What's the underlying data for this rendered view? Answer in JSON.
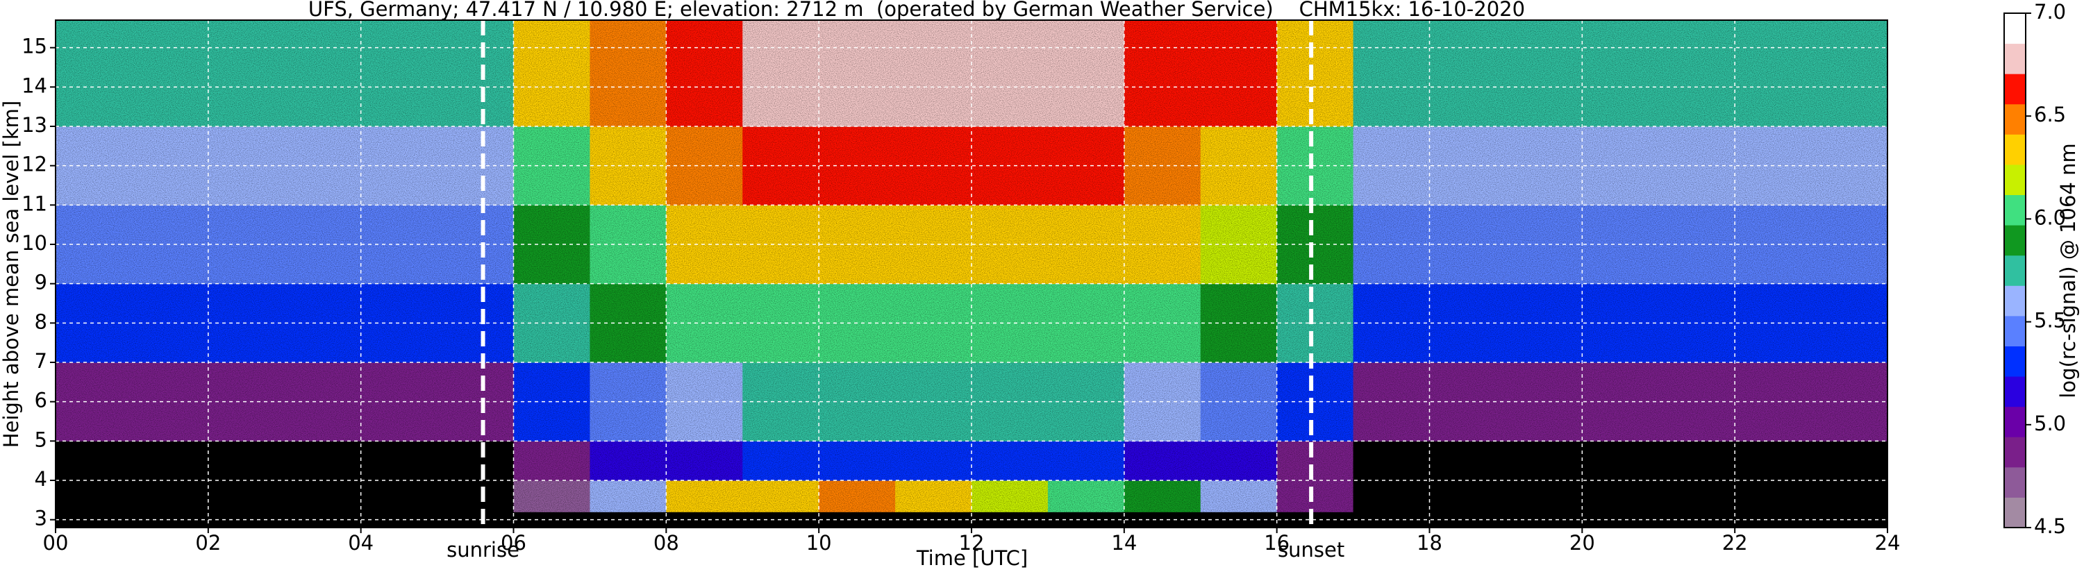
{
  "chart_data": {
    "type": "heatmap",
    "title": "UFS, Germany; 47.417 N / 10.980 E; elevation: 2712 m  (operated by German Weather Service)    CHM15kx: 16-10-2020",
    "x_label": "Time [UTC]",
    "y_label": "Height above mean sea level [km]",
    "colorbar_label": "log(rc-signal) @ 1064 nm",
    "xlim": [
      0,
      24
    ],
    "ylim": [
      2.8,
      15.7
    ],
    "xticks": [
      {
        "value": 0,
        "label": "00"
      },
      {
        "value": 2,
        "label": "02"
      },
      {
        "value": 4,
        "label": "04"
      },
      {
        "value": 6,
        "label": "06"
      },
      {
        "value": 8,
        "label": "08"
      },
      10,
      12,
      14,
      16,
      18,
      20,
      22,
      24
    ],
    "yticks": [
      3,
      4,
      5,
      6,
      7,
      8,
      9,
      10,
      11,
      12,
      13,
      14,
      15
    ],
    "grid": true,
    "x_edges": [
      0,
      1,
      2,
      3,
      4,
      5,
      6,
      7,
      8,
      9,
      10,
      11,
      12,
      13,
      14,
      15,
      16,
      17,
      18,
      19,
      20,
      21,
      22,
      23,
      24
    ],
    "y_edges": [
      2.8,
      3.2,
      4,
      5,
      7,
      9,
      11,
      13,
      15.7
    ],
    "z": [
      [
        4.3,
        4.3,
        4.3,
        4.3,
        4.3,
        4.3,
        4.3,
        4.3,
        4.3,
        4.3,
        4.3,
        4.3,
        4.3,
        4.3,
        4.3,
        4.3,
        4.3,
        4.3,
        4.3,
        4.3,
        4.3,
        4.3,
        4.3,
        4.3
      ],
      [
        4.3,
        4.3,
        4.3,
        4.3,
        4.3,
        4.3,
        4.7,
        5.6,
        6.3,
        6.4,
        6.5,
        6.3,
        6.2,
        6.0,
        5.9,
        5.6,
        4.8,
        4.3,
        4.3,
        4.3,
        4.3,
        4.3,
        4.3,
        4.3
      ],
      [
        4.3,
        4.3,
        4.3,
        4.3,
        4.3,
        4.4,
        4.9,
        5.1,
        5.2,
        5.3,
        5.3,
        5.3,
        5.3,
        5.3,
        5.2,
        5.1,
        4.8,
        4.4,
        4.3,
        4.3,
        4.3,
        4.3,
        4.3,
        4.3
      ],
      [
        4.8,
        4.8,
        4.8,
        4.8,
        4.8,
        4.8,
        5.3,
        5.5,
        5.6,
        5.7,
        5.7,
        5.7,
        5.7,
        5.7,
        5.6,
        5.5,
        5.3,
        4.9,
        4.8,
        4.8,
        4.8,
        4.8,
        4.8,
        4.8
      ],
      [
        5.3,
        5.3,
        5.3,
        5.3,
        5.3,
        5.3,
        5.7,
        5.9,
        6.0,
        6.1,
        6.1,
        6.1,
        6.1,
        6.1,
        6.0,
        5.9,
        5.7,
        5.3,
        5.3,
        5.3,
        5.3,
        5.3,
        5.3,
        5.3
      ],
      [
        5.5,
        5.5,
        5.5,
        5.5,
        5.5,
        5.5,
        5.9,
        6.1,
        6.3,
        6.3,
        6.4,
        6.4,
        6.4,
        6.3,
        6.3,
        6.2,
        5.9,
        5.5,
        5.5,
        5.5,
        5.5,
        5.5,
        5.5,
        5.5
      ],
      [
        5.6,
        5.6,
        5.6,
        5.6,
        5.6,
        5.6,
        6.1,
        6.3,
        6.5,
        6.6,
        6.6,
        6.6,
        6.6,
        6.6,
        6.5,
        6.4,
        6.1,
        5.6,
        5.6,
        5.6,
        5.6,
        5.6,
        5.6,
        5.6
      ],
      [
        5.7,
        5.7,
        5.7,
        5.7,
        5.7,
        5.7,
        6.3,
        6.5,
        6.7,
        6.8,
        6.8,
        6.8,
        6.8,
        6.8,
        6.7,
        6.6,
        6.3,
        5.7,
        5.7,
        5.7,
        5.7,
        5.7,
        5.7,
        5.7
      ]
    ],
    "colorbar": {
      "lim": [
        4.5,
        7.0
      ],
      "ticks": [
        4.5,
        {
          "value": 5,
          "label": "5.0"
        },
        5.5,
        {
          "value": 6,
          "label": "6.0"
        },
        6.5,
        {
          "value": 7,
          "label": "7.0"
        }
      ],
      "colors": [
        "#a38aa3",
        "#8e5a99",
        "#7a1f8a",
        "#6a00a8",
        "#2a00e0",
        "#0030ff",
        "#5a80ff",
        "#9ab4ff",
        "#30c0a0",
        "#109820",
        "#40e080",
        "#c8f000",
        "#ffd000",
        "#ff8000",
        "#ff1000",
        "#f4c8c8",
        "#ffffff"
      ],
      "under_color": "#000000"
    },
    "annotations": [
      {
        "label": "sunrise",
        "x": 5.6
      },
      {
        "label": "sunset",
        "x": 16.45
      }
    ]
  }
}
